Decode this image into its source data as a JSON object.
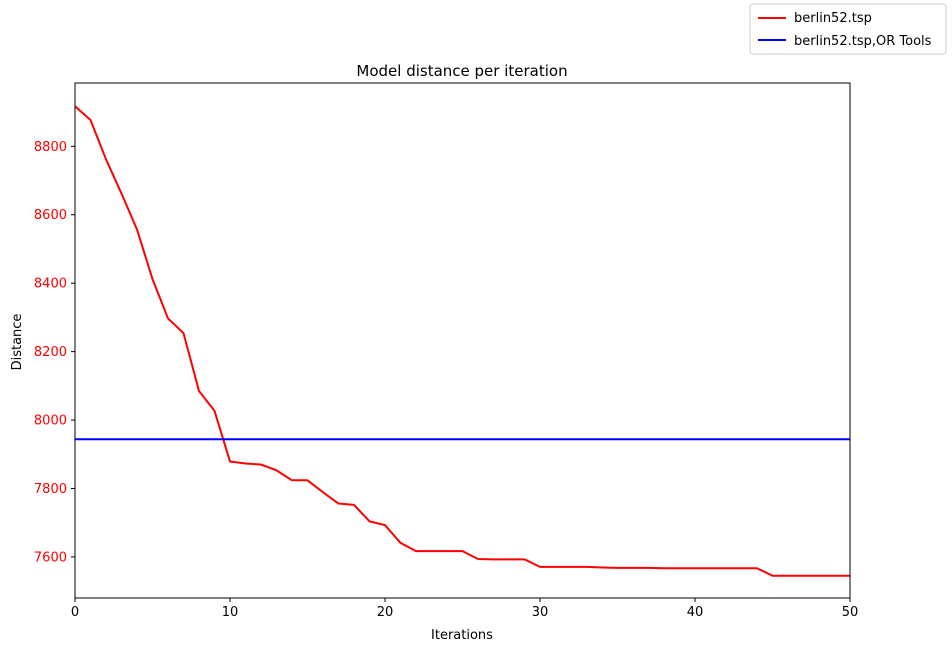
{
  "chart_data": {
    "type": "line",
    "title": "Model distance per iteration",
    "xlabel": "Iterations",
    "ylabel": "Distance",
    "xlim": [
      0,
      50
    ],
    "ylim": [
      7480,
      8985
    ],
    "x_ticks": [
      0,
      10,
      20,
      30,
      40,
      50
    ],
    "y_ticks": [
      7600,
      7800,
      8000,
      8200,
      8400,
      8600,
      8800
    ],
    "y_tick_color": "#ff0000",
    "grid": false,
    "legend_placement": "top-right (outside axes)",
    "series": [
      {
        "name": "berlin52.tsp",
        "color": "#ff0000",
        "x": [
          0,
          1,
          2,
          3,
          4,
          5,
          6,
          7,
          8,
          9,
          10,
          11,
          12,
          13,
          14,
          15,
          16,
          17,
          18,
          19,
          20,
          21,
          22,
          23,
          24,
          25,
          26,
          27,
          28,
          29,
          30,
          31,
          32,
          33,
          34,
          35,
          36,
          37,
          38,
          39,
          40,
          41,
          42,
          43,
          44,
          45,
          46,
          47,
          48,
          49,
          50
        ],
        "values": [
          8917,
          8877,
          8762,
          8662,
          8557,
          8412,
          8297,
          8254,
          8085,
          8027,
          7879,
          7873,
          7870,
          7853,
          7824,
          7824,
          7789,
          7756,
          7752,
          7704,
          7693,
          7641,
          7617,
          7617,
          7617,
          7617,
          7594,
          7593,
          7593,
          7593,
          7571,
          7571,
          7571,
          7571,
          7569,
          7568,
          7568,
          7568,
          7567,
          7567,
          7567,
          7567,
          7567,
          7567,
          7567,
          7545,
          7545,
          7545,
          7545,
          7545,
          7545
        ]
      },
      {
        "name": "berlin52.tsp,OR Tools",
        "color": "#0000ff",
        "x": [
          0,
          50
        ],
        "values": [
          7944,
          7944
        ]
      }
    ]
  }
}
